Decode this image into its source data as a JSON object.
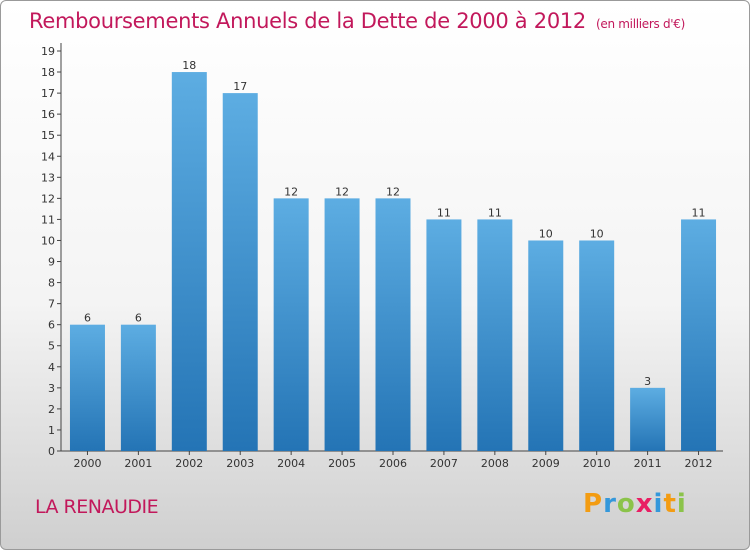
{
  "title": "Remboursements Annuels de la Dette de 2000 à 2012",
  "subtitle": "(en milliers d'€)",
  "commune": "LA RENAUDIE",
  "brand": {
    "text": "Proxiti",
    "letters": [
      {
        "ch": "P",
        "color": "#f39c12"
      },
      {
        "ch": "r",
        "color": "#3498db"
      },
      {
        "ch": "o",
        "color": "#8bc34a"
      },
      {
        "ch": "x",
        "color": "#e91e63"
      },
      {
        "ch": "i",
        "color": "#3498db"
      },
      {
        "ch": "t",
        "color": "#f39c12"
      },
      {
        "ch": "i",
        "color": "#8bc34a"
      }
    ]
  },
  "colors": {
    "bar_top": "#5dade2",
    "bar_bottom": "#2474b5",
    "title": "#c2185b"
  },
  "chart_data": {
    "type": "bar",
    "title": "Remboursements Annuels de la Dette de 2000 à 2012",
    "subtitle": "(en milliers d'€)",
    "categories": [
      "2000",
      "2001",
      "2002",
      "2003",
      "2004",
      "2005",
      "2006",
      "2007",
      "2008",
      "2009",
      "2010",
      "2011",
      "2012"
    ],
    "values": [
      6,
      6,
      18,
      17,
      12,
      12,
      12,
      11,
      11,
      10,
      10,
      3,
      11
    ],
    "ylim": [
      0,
      19
    ],
    "yticks": [
      0,
      1,
      2,
      3,
      4,
      5,
      6,
      7,
      8,
      9,
      10,
      11,
      12,
      13,
      14,
      15,
      16,
      17,
      18,
      19
    ],
    "grid": false,
    "data_labels": true
  }
}
